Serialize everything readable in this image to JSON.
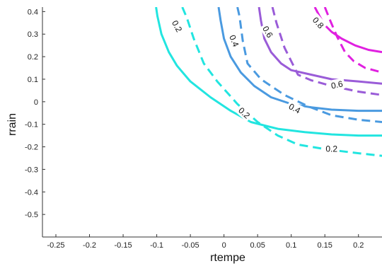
{
  "chart_data": {
    "type": "line",
    "title": "",
    "xlabel": "rtempe",
    "ylabel": "rrain",
    "xlim": [
      -0.27,
      0.235
    ],
    "ylim": [
      -0.6,
      0.42
    ],
    "xticks": [
      -0.25,
      -0.2,
      -0.15,
      -0.1,
      -0.05,
      0,
      0.05,
      0.1,
      0.15,
      0.2
    ],
    "xtick_labels": [
      "-0.25",
      "-0.2",
      "-0.15",
      "-0.1",
      "-0.05",
      "0",
      "0.05",
      "0.1",
      "0.15",
      "0.2"
    ],
    "yticks": [
      0.4,
      0.3,
      0.2,
      0.1,
      0,
      -0.1,
      -0.2,
      -0.3,
      -0.4,
      -0.5
    ],
    "ytick_labels": [
      "0.4",
      "0.3",
      "0.2",
      "0.1",
      "0",
      "-0.1",
      "-0.2",
      "-0.3",
      "-0.4",
      "-0.5"
    ],
    "grid": false,
    "series": [
      {
        "level": "0.2",
        "style": "solid",
        "color": "#22e5e0",
        "x": [
          -0.101,
          -0.099,
          -0.093,
          -0.082,
          -0.07,
          -0.05,
          -0.02,
          0.01,
          0.04,
          0.08,
          0.12,
          0.16,
          0.2,
          0.235
        ],
        "y": [
          0.42,
          0.38,
          0.3,
          0.22,
          0.16,
          0.09,
          0.02,
          -0.04,
          -0.09,
          -0.12,
          -0.135,
          -0.145,
          -0.15,
          -0.15
        ]
      },
      {
        "level": "0.2",
        "style": "dashed",
        "color": "#22e5e0",
        "x": [
          -0.062,
          -0.055,
          -0.045,
          -0.03,
          -0.01,
          0.02,
          0.05,
          0.08,
          0.11,
          0.15,
          0.19,
          0.235
        ],
        "y": [
          0.42,
          0.37,
          0.28,
          0.17,
          0.09,
          -0.01,
          -0.09,
          -0.15,
          -0.19,
          -0.21,
          -0.225,
          -0.24
        ]
      },
      {
        "level": "0.4",
        "style": "solid",
        "color": "#4a9ae0",
        "x": [
          -0.008,
          -0.005,
          0.0,
          0.01,
          0.025,
          0.045,
          0.07,
          0.1,
          0.13,
          0.16,
          0.2,
          0.235
        ],
        "y": [
          0.42,
          0.36,
          0.28,
          0.2,
          0.13,
          0.07,
          0.02,
          -0.01,
          -0.025,
          -0.035,
          -0.04,
          -0.04
        ]
      },
      {
        "level": "0.4",
        "style": "dashed",
        "color": "#4a9ae0",
        "x": [
          0.02,
          0.023,
          0.028,
          0.035,
          0.055,
          0.09,
          0.125,
          0.16,
          0.2,
          0.235
        ],
        "y": [
          0.42,
          0.38,
          0.27,
          0.17,
          0.1,
          0.03,
          -0.02,
          -0.06,
          -0.08,
          -0.09
        ]
      },
      {
        "level": "0.6",
        "style": "solid",
        "color": "#9a5cd8",
        "x": [
          0.052,
          0.055,
          0.06,
          0.07,
          0.085,
          0.1,
          0.13,
          0.16,
          0.2,
          0.235
        ],
        "y": [
          0.42,
          0.36,
          0.28,
          0.22,
          0.17,
          0.14,
          0.12,
          0.1,
          0.09,
          0.08
        ]
      },
      {
        "level": "0.6",
        "style": "dashed",
        "color": "#9a5cd8",
        "x": [
          0.072,
          0.078,
          0.09,
          0.1,
          0.11,
          0.13,
          0.16,
          0.2,
          0.235
        ],
        "y": [
          0.42,
          0.35,
          0.24,
          0.18,
          0.12,
          0.095,
          0.07,
          0.045,
          0.03
        ]
      },
      {
        "level": "0.8",
        "style": "solid",
        "color": "#e020e0",
        "x": [
          0.135,
          0.142,
          0.15,
          0.16,
          0.175,
          0.195,
          0.215,
          0.235
        ],
        "y": [
          0.42,
          0.38,
          0.34,
          0.31,
          0.28,
          0.25,
          0.23,
          0.22
        ]
      },
      {
        "level": "0.8",
        "style": "dashed",
        "color": "#e020e0",
        "x": [
          0.15,
          0.158,
          0.168,
          0.18,
          0.193,
          0.21,
          0.235
        ],
        "y": [
          0.42,
          0.36,
          0.29,
          0.22,
          0.18,
          0.15,
          0.13
        ]
      }
    ],
    "contour_labels": [
      {
        "text": "0.2",
        "x": -0.07,
        "y": 0.335,
        "angle": 62
      },
      {
        "text": "0.2",
        "x": 0.03,
        "y": -0.05,
        "angle": 42
      },
      {
        "text": "0.2",
        "x": 0.16,
        "y": -0.21,
        "angle": 0
      },
      {
        "text": "0.4",
        "x": 0.015,
        "y": 0.27,
        "angle": 68
      },
      {
        "text": "0.4",
        "x": 0.105,
        "y": -0.03,
        "angle": 28
      },
      {
        "text": "0.6",
        "x": 0.065,
        "y": 0.31,
        "angle": 60
      },
      {
        "text": "0.6",
        "x": 0.168,
        "y": 0.075,
        "angle": -12
      },
      {
        "text": "0.8",
        "x": 0.14,
        "y": 0.35,
        "angle": 48
      }
    ]
  }
}
